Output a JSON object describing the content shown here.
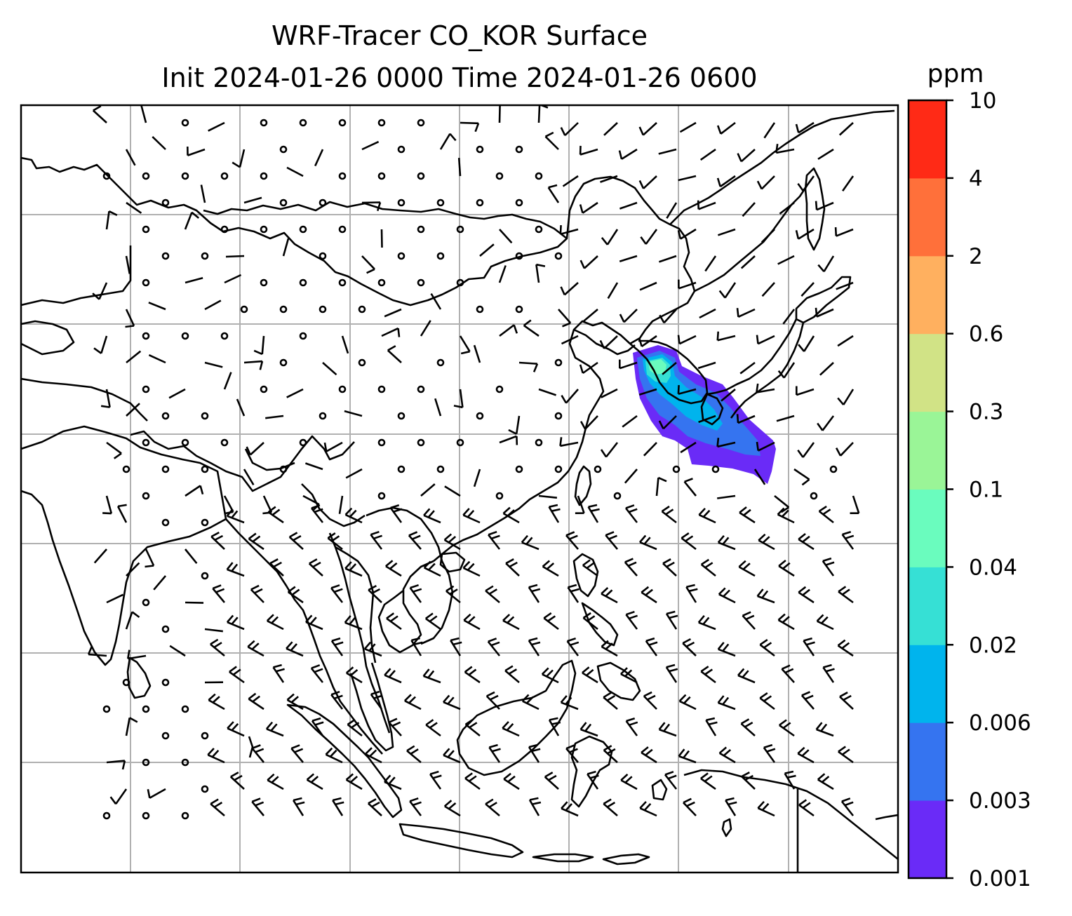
{
  "title": {
    "line1": "WRF-Tracer CO_KOR Surface",
    "line2": "Init 2024-01-26 0000 Time 2024-01-26 0600"
  },
  "colorbar": {
    "unit": "ppm",
    "ticks": [
      "0.001",
      "0.003",
      "0.006",
      "0.02",
      "0.04",
      "0.1",
      "0.3",
      "0.6",
      "2",
      "4",
      "10"
    ],
    "colors": [
      "#6a2bf7",
      "#3574f0",
      "#00b4ed",
      "#36e0d5",
      "#6afcbe",
      "#9af597",
      "#d1e386",
      "#ffb05f",
      "#ff703a",
      "#ff2a16"
    ]
  },
  "map": {
    "gridlines": true,
    "features": [
      "coastlines",
      "country-borders",
      "wind-barbs",
      "co-tracer-plume"
    ]
  }
}
